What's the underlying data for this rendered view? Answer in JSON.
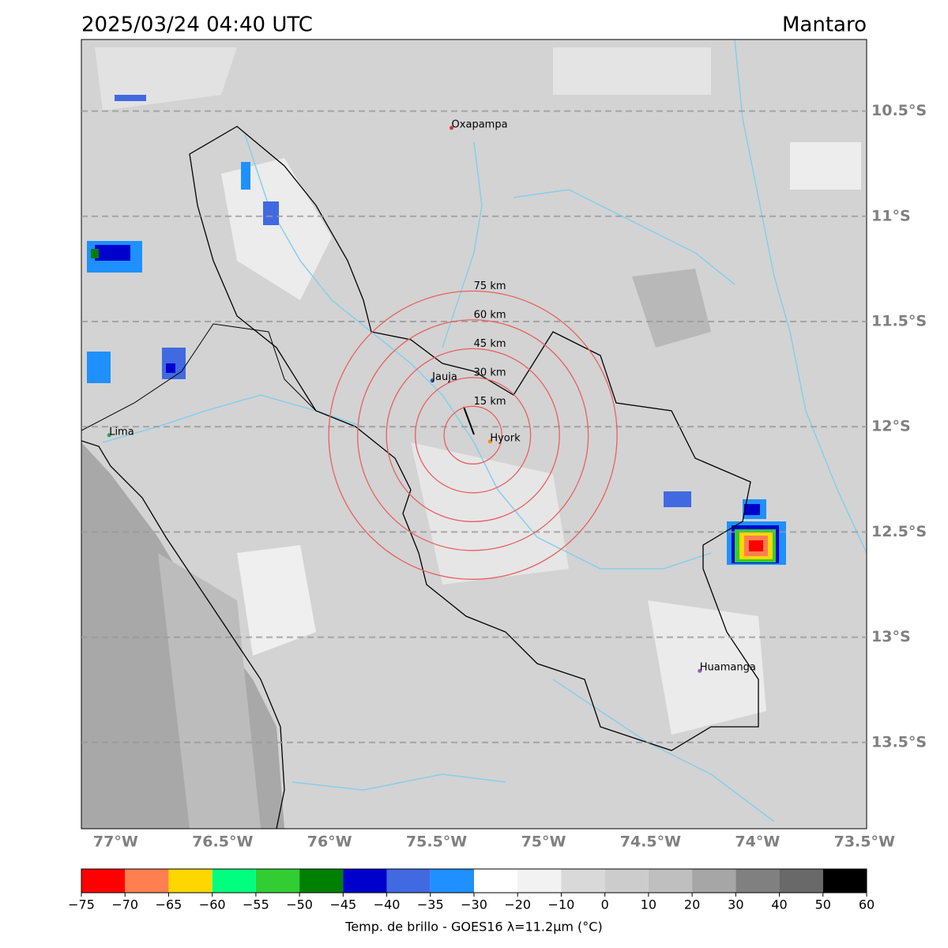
{
  "header": {
    "title": "2025/03/24 04:40 UTC",
    "region": "Mantaro"
  },
  "map": {
    "xlim": [
      -77.16,
      -73.49
    ],
    "ylim": [
      -13.91,
      -10.16
    ],
    "xticks": [
      {
        "value": -77,
        "label": "77°W"
      },
      {
        "value": -76.5,
        "label": "76.5°W"
      },
      {
        "value": -76,
        "label": "76°W"
      },
      {
        "value": -75.5,
        "label": "75.5°W"
      },
      {
        "value": -75,
        "label": "75°W"
      },
      {
        "value": -74.5,
        "label": "74.5°W"
      },
      {
        "value": -74,
        "label": "74°W"
      },
      {
        "value": -73.5,
        "label": "73.5°W"
      }
    ],
    "yticks": [
      {
        "value": -10.5,
        "label": "10.5°S"
      },
      {
        "value": -11,
        "label": "11°S"
      },
      {
        "value": -11.5,
        "label": "11.5°S"
      },
      {
        "value": -12,
        "label": "12°S"
      },
      {
        "value": -12.5,
        "label": "12.5°S"
      },
      {
        "value": -13,
        "label": "13°S"
      },
      {
        "value": -13.5,
        "label": "13.5°S"
      }
    ],
    "cities": [
      {
        "name": "Oxapampa",
        "lon": -75.43,
        "lat": -10.58,
        "color": "#e03030"
      },
      {
        "name": "Jauja",
        "lon": -75.52,
        "lat": -11.78,
        "color": "#3060c0"
      },
      {
        "name": "Hyork",
        "lon": -75.25,
        "lat": -12.07,
        "color": "#ff8c00"
      },
      {
        "name": "Lima",
        "lon": -77.03,
        "lat": -12.04,
        "color": "#30a060"
      },
      {
        "name": "Huamanga",
        "lon": -74.27,
        "lat": -13.16,
        "color": "#9060c0"
      }
    ],
    "rings": {
      "center_lon": -75.33,
      "center_lat": -12.04,
      "color": "#e86060",
      "radii": [
        {
          "value": 15,
          "label": "15 km"
        },
        {
          "value": 30,
          "label": "30 km"
        },
        {
          "value": 45,
          "label": "45 km"
        },
        {
          "value": 60,
          "label": "60 km"
        },
        {
          "value": 75,
          "label": "75 km"
        }
      ]
    }
  },
  "colorbar": {
    "label": "Temp. de brillo - GOES16 λ=11.2μm (°C)",
    "ticks": [
      {
        "value": -75,
        "label": "−75"
      },
      {
        "value": -70,
        "label": "−70"
      },
      {
        "value": -65,
        "label": "−65"
      },
      {
        "value": -60,
        "label": "−60"
      },
      {
        "value": -55,
        "label": "−55"
      },
      {
        "value": -50,
        "label": "−50"
      },
      {
        "value": -45,
        "label": "−45"
      },
      {
        "value": -40,
        "label": "−40"
      },
      {
        "value": -35,
        "label": "−35"
      },
      {
        "value": -30,
        "label": "−30"
      },
      {
        "value": -20,
        "label": "−20"
      },
      {
        "value": -10,
        "label": "−10"
      },
      0,
      10,
      20,
      30,
      40,
      50,
      60
    ],
    "colors": [
      "#ff0000",
      "#ff7f50",
      "#ffd700",
      "#00ff7f",
      "#32cd32",
      "#008000",
      "#0000cd",
      "#4169e1",
      "#1e90ff",
      "#ffffff",
      "#f2f2f2",
      "#d9d9d9",
      "#cccccc",
      "#bfbfbf",
      "#a6a6a6",
      "#808080",
      "#696969",
      "#000000"
    ]
  }
}
